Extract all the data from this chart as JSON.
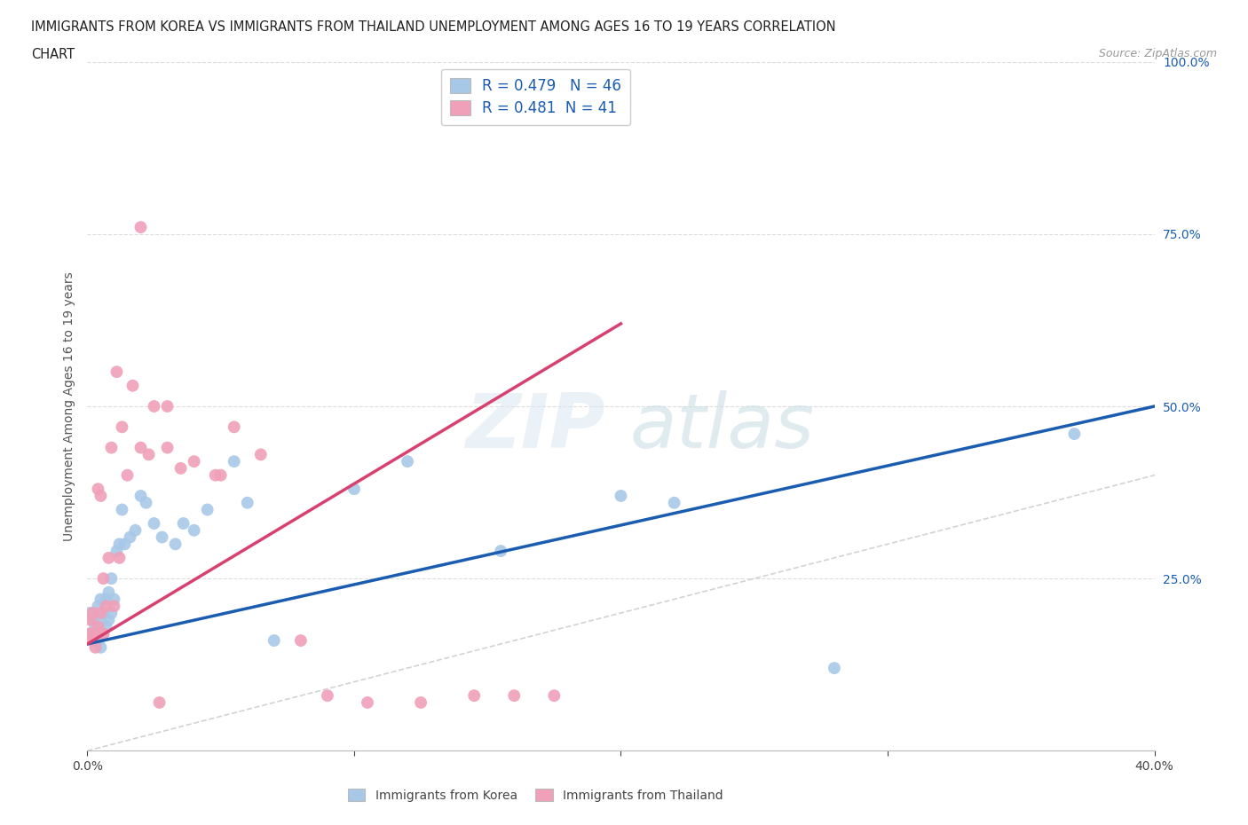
{
  "title_line1": "IMMIGRANTS FROM KOREA VS IMMIGRANTS FROM THAILAND UNEMPLOYMENT AMONG AGES 16 TO 19 YEARS CORRELATION",
  "title_line2": "CHART",
  "source": "Source: ZipAtlas.com",
  "ylabel": "Unemployment Among Ages 16 to 19 years",
  "xlim": [
    0.0,
    0.4
  ],
  "ylim": [
    0.0,
    1.0
  ],
  "korea_R": 0.479,
  "korea_N": 46,
  "thailand_R": 0.481,
  "thailand_N": 41,
  "korea_color": "#a8c8e8",
  "thailand_color": "#f0a0b8",
  "korea_line_color": "#1a5cb0",
  "thailand_line_color": "#d84070",
  "diag_line_color": "#c8c8c8",
  "background_color": "#ffffff",
  "legend_text_color": "#1a5cb0",
  "legend_box_color_korea": "#a8c8e8",
  "legend_box_color_thailand": "#f0a0b8",
  "korea_line_x0": 0.0,
  "korea_line_y0": 0.155,
  "korea_line_x1": 0.4,
  "korea_line_y1": 0.5,
  "thailand_line_x0": 0.0,
  "thailand_line_y0": 0.155,
  "thailand_line_x1": 0.2,
  "thailand_line_y1": 0.62,
  "korea_x": [
    0.001,
    0.001,
    0.002,
    0.002,
    0.003,
    0.003,
    0.003,
    0.004,
    0.004,
    0.005,
    0.005,
    0.005,
    0.005,
    0.006,
    0.006,
    0.007,
    0.007,
    0.008,
    0.008,
    0.009,
    0.009,
    0.01,
    0.011,
    0.012,
    0.013,
    0.014,
    0.016,
    0.018,
    0.02,
    0.022,
    0.025,
    0.028,
    0.033,
    0.036,
    0.04,
    0.045,
    0.055,
    0.06,
    0.07,
    0.1,
    0.12,
    0.155,
    0.2,
    0.22,
    0.28,
    0.37
  ],
  "korea_y": [
    0.17,
    0.2,
    0.17,
    0.19,
    0.16,
    0.18,
    0.2,
    0.16,
    0.21,
    0.15,
    0.17,
    0.19,
    0.22,
    0.17,
    0.2,
    0.18,
    0.22,
    0.19,
    0.23,
    0.2,
    0.25,
    0.22,
    0.29,
    0.3,
    0.35,
    0.3,
    0.31,
    0.32,
    0.37,
    0.36,
    0.33,
    0.31,
    0.3,
    0.33,
    0.32,
    0.35,
    0.42,
    0.36,
    0.16,
    0.38,
    0.42,
    0.29,
    0.37,
    0.36,
    0.12,
    0.46
  ],
  "thailand_x": [
    0.001,
    0.001,
    0.002,
    0.002,
    0.003,
    0.003,
    0.004,
    0.004,
    0.005,
    0.005,
    0.006,
    0.006,
    0.007,
    0.008,
    0.009,
    0.01,
    0.011,
    0.012,
    0.013,
    0.015,
    0.017,
    0.02,
    0.023,
    0.027,
    0.03,
    0.035,
    0.04,
    0.048,
    0.055,
    0.065,
    0.08,
    0.09,
    0.105,
    0.125,
    0.145,
    0.16,
    0.175,
    0.02,
    0.025,
    0.03,
    0.05
  ],
  "thailand_y": [
    0.17,
    0.19,
    0.16,
    0.2,
    0.17,
    0.15,
    0.18,
    0.38,
    0.2,
    0.37,
    0.17,
    0.25,
    0.21,
    0.28,
    0.44,
    0.21,
    0.55,
    0.28,
    0.47,
    0.4,
    0.53,
    0.44,
    0.43,
    0.07,
    0.44,
    0.41,
    0.42,
    0.4,
    0.47,
    0.43,
    0.16,
    0.08,
    0.07,
    0.07,
    0.08,
    0.08,
    0.08,
    0.76,
    0.5,
    0.5,
    0.4
  ]
}
